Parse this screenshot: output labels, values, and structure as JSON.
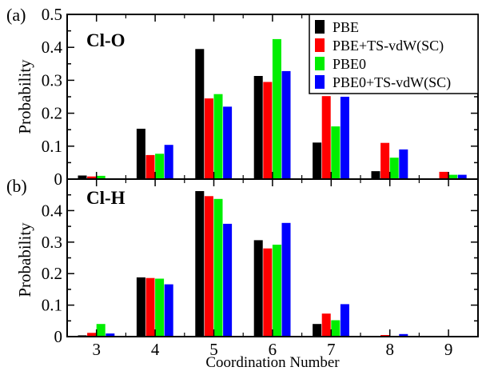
{
  "colors": {
    "PBE": "#000000",
    "PBE+TS-vdW(SC)": "#ff0000",
    "PBE0": "#00ee00",
    "PBE0+TS-vdW(SC)": "#0000ff"
  },
  "chart_data": [
    {
      "type": "bar",
      "panel_label": "(a)",
      "title": "Cl-O",
      "ylabel": "Probability",
      "xlabel": "",
      "categories": [
        "3",
        "4",
        "5",
        "6",
        "7",
        "8",
        "9"
      ],
      "ylim": [
        0,
        0.5
      ],
      "yticks": [
        "0",
        "0.1",
        "0.2",
        "0.3",
        "0.4",
        "0.5"
      ],
      "legend_position": "top-right",
      "grid": false,
      "series": [
        {
          "name": "PBE",
          "values": [
            0.011,
            0.153,
            0.395,
            0.313,
            0.111,
            0.024,
            0.0
          ]
        },
        {
          "name": "PBE+TS-vdW(SC)",
          "values": [
            0.008,
            0.073,
            0.245,
            0.295,
            0.252,
            0.11,
            0.022
          ]
        },
        {
          "name": "PBE0",
          "values": [
            0.01,
            0.077,
            0.258,
            0.425,
            0.16,
            0.065,
            0.013
          ]
        },
        {
          "name": "PBE0+TS-vdW(SC)",
          "values": [
            0.0,
            0.104,
            0.22,
            0.328,
            0.25,
            0.09,
            0.013
          ]
        }
      ]
    },
    {
      "type": "bar",
      "panel_label": "(b)",
      "title": "Cl-H",
      "ylabel": "Probability",
      "xlabel": "Coordination Number",
      "categories": [
        "3",
        "4",
        "5",
        "6",
        "7",
        "8",
        "9"
      ],
      "ylim": [
        0,
        0.5
      ],
      "yticks": [
        "0",
        "0.1",
        "0.2",
        "0.3",
        "0.4"
      ],
      "grid": false,
      "series": [
        {
          "name": "PBE",
          "values": [
            0.004,
            0.188,
            0.462,
            0.306,
            0.04,
            0.0,
            0.0
          ]
        },
        {
          "name": "PBE+TS-vdW(SC)",
          "values": [
            0.012,
            0.186,
            0.446,
            0.28,
            0.073,
            0.005,
            0.0
          ]
        },
        {
          "name": "PBE0",
          "values": [
            0.04,
            0.184,
            0.437,
            0.292,
            0.052,
            0.0,
            0.0
          ]
        },
        {
          "name": "PBE0+TS-vdW(SC)",
          "values": [
            0.01,
            0.166,
            0.358,
            0.361,
            0.103,
            0.008,
            0.0
          ]
        }
      ]
    }
  ]
}
